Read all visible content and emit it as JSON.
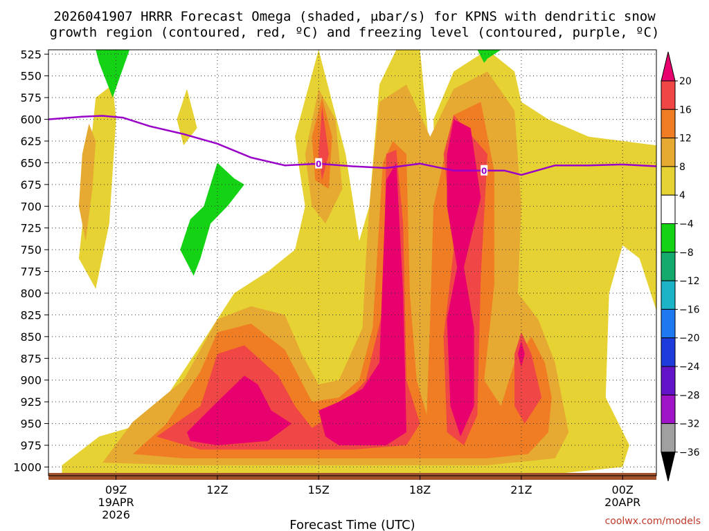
{
  "chart_data": {
    "type": "heatmap",
    "title_line1": "2026041907 HRRR Forecast Omega (shaded, μbar/s) for KPNS with dendritic snow",
    "title_line2": "growth region (contoured, red, ºC) and freezing level (contoured, purple, ºC)",
    "xlabel": "Forecast Time (UTC)",
    "credit": "coolwx.com/models",
    "x_range_hours": [
      7.0,
      25.0
    ],
    "y_range_mb": [
      520,
      1010
    ],
    "y_ticks": [
      "525",
      "550",
      "575",
      "600",
      "625",
      "650",
      "675",
      "700",
      "725",
      "750",
      "775",
      "800",
      "825",
      "850",
      "875",
      "900",
      "925",
      "950",
      "975",
      "1000"
    ],
    "x_ticks": [
      {
        "hour": 9,
        "label": "09Z",
        "sub1": "19APR",
        "sub2": "2026"
      },
      {
        "hour": 12,
        "label": "12Z",
        "sub1": "",
        "sub2": ""
      },
      {
        "hour": 15,
        "label": "15Z",
        "sub1": "",
        "sub2": ""
      },
      {
        "hour": 18,
        "label": "18Z",
        "sub1": "",
        "sub2": ""
      },
      {
        "hour": 21,
        "label": "21Z",
        "sub1": "",
        "sub2": ""
      },
      {
        "hour": 24,
        "label": "00Z",
        "sub1": "20APR",
        "sub2": ""
      }
    ],
    "colorbar": {
      "labels": [
        "20",
        "16",
        "12",
        "8",
        "4",
        "−4",
        "−8",
        "−12",
        "−16",
        "−20",
        "−24",
        "−28",
        "−32",
        "−36"
      ],
      "colors": [
        "#e8006e",
        "#f04646",
        "#f07d23",
        "#e6aa32",
        "#e6d232",
        "#ffffff",
        "#14d214",
        "#14aa6e",
        "#1eb4c8",
        "#1e78f0",
        "#1e3cdc",
        "#6414c8",
        "#a014c8",
        "#a0a0a0",
        "#000000"
      ]
    },
    "freezing_level": {
      "label": "0",
      "label_hours": [
        15.0,
        19.9
      ],
      "points": [
        [
          7.0,
          600
        ],
        [
          8.0,
          597
        ],
        [
          8.6,
          596
        ],
        [
          9.2,
          598
        ],
        [
          10.0,
          608
        ],
        [
          11.0,
          617
        ],
        [
          12.0,
          628
        ],
        [
          13.0,
          644
        ],
        [
          14.0,
          653
        ],
        [
          15.0,
          651
        ],
        [
          16.0,
          654
        ],
        [
          17.0,
          656
        ],
        [
          18.0,
          651
        ],
        [
          19.0,
          659
        ],
        [
          19.9,
          659
        ],
        [
          20.5,
          659
        ],
        [
          21.0,
          664
        ],
        [
          22.0,
          653
        ],
        [
          23.0,
          653
        ],
        [
          24.0,
          652
        ],
        [
          25.0,
          654
        ]
      ]
    },
    "omega_regions": [
      {
        "level": 4,
        "points": [
          [
            7.4,
            998
          ],
          [
            8.5,
            965
          ],
          [
            10.0,
            948
          ],
          [
            11.5,
            860
          ],
          [
            12.5,
            800
          ],
          [
            13.5,
            775
          ],
          [
            14.3,
            750
          ],
          [
            14.6,
            700
          ],
          [
            14.4,
            650
          ],
          [
            14.3,
            620
          ],
          [
            15.0,
            520
          ],
          [
            15.8,
            640
          ],
          [
            16.2,
            740
          ],
          [
            16.5,
            700
          ],
          [
            16.8,
            560
          ],
          [
            17.3,
            520
          ],
          [
            18.0,
            520
          ],
          [
            18.2,
            600
          ],
          [
            18.4,
            700
          ],
          [
            18.5,
            760
          ],
          [
            18.4,
            600
          ],
          [
            19.0,
            545
          ],
          [
            20.0,
            520
          ],
          [
            20.8,
            545
          ],
          [
            21.0,
            580
          ],
          [
            21.8,
            600
          ],
          [
            23.0,
            620
          ],
          [
            24.0,
            625
          ],
          [
            25.0,
            630
          ],
          [
            25.0,
            820
          ],
          [
            24.5,
            760
          ],
          [
            24.0,
            745
          ],
          [
            23.6,
            800
          ],
          [
            23.5,
            920
          ],
          [
            24.2,
            975
          ],
          [
            24.0,
            1000
          ],
          [
            22.0,
            1008
          ],
          [
            20.0,
            1008
          ],
          [
            18.0,
            1008
          ],
          [
            16.0,
            1008
          ],
          [
            14.0,
            1008
          ],
          [
            11.0,
            1008
          ],
          [
            9.0,
            1008
          ],
          [
            7.4,
            1008
          ]
        ]
      },
      {
        "level": 4,
        "points": [
          [
            7.9,
            760
          ],
          [
            8.4,
            575
          ],
          [
            8.9,
            560
          ],
          [
            9.0,
            600
          ],
          [
            8.8,
            720
          ],
          [
            8.4,
            795
          ]
        ]
      },
      {
        "level": 4,
        "points": [
          [
            10.8,
            600
          ],
          [
            11.1,
            565
          ],
          [
            11.4,
            610
          ],
          [
            11.0,
            630
          ]
        ]
      },
      {
        "level": 8,
        "points": [
          [
            8.0,
            640
          ],
          [
            8.2,
            605
          ],
          [
            8.4,
            625
          ],
          [
            8.3,
            680
          ],
          [
            8.1,
            740
          ],
          [
            7.9,
            700
          ]
        ]
      },
      {
        "level": 8,
        "points": [
          [
            8.6,
            995
          ],
          [
            9.5,
            948
          ],
          [
            11.0,
            900
          ],
          [
            12.0,
            830
          ],
          [
            13.0,
            815
          ],
          [
            14.0,
            825
          ],
          [
            14.5,
            870
          ],
          [
            15.0,
            905
          ],
          [
            15.6,
            900
          ],
          [
            16.3,
            840
          ],
          [
            16.4,
            760
          ],
          [
            16.5,
            700
          ],
          [
            16.8,
            580
          ],
          [
            17.6,
            560
          ],
          [
            18.3,
            620
          ],
          [
            19.0,
            565
          ],
          [
            20.0,
            545
          ],
          [
            20.8,
            590
          ],
          [
            21.0,
            700
          ],
          [
            20.9,
            800
          ],
          [
            21.5,
            830
          ],
          [
            22.0,
            880
          ],
          [
            22.2,
            920
          ],
          [
            22.4,
            960
          ],
          [
            22.0,
            990
          ],
          [
            20.0,
            998
          ],
          [
            18.0,
            998
          ],
          [
            16.0,
            998
          ],
          [
            14.0,
            998
          ],
          [
            11.0,
            998
          ]
        ]
      },
      {
        "level": 8,
        "points": [
          [
            14.6,
            640
          ],
          [
            15.0,
            565
          ],
          [
            15.5,
            600
          ],
          [
            15.7,
            680
          ],
          [
            15.2,
            720
          ],
          [
            14.8,
            700
          ]
        ]
      },
      {
        "level": 12,
        "points": [
          [
            9.5,
            985
          ],
          [
            10.5,
            950
          ],
          [
            11.5,
            890
          ],
          [
            12.0,
            845
          ],
          [
            13.0,
            835
          ],
          [
            14.0,
            865
          ],
          [
            14.8,
            925
          ],
          [
            15.6,
            920
          ],
          [
            16.2,
            900
          ],
          [
            16.6,
            840
          ],
          [
            16.9,
            650
          ],
          [
            17.2,
            625
          ],
          [
            17.6,
            640
          ],
          [
            17.7,
            800
          ],
          [
            17.9,
            900
          ],
          [
            18.2,
            940
          ],
          [
            18.3,
            830
          ],
          [
            18.4,
            700
          ],
          [
            19.0,
            595
          ],
          [
            19.8,
            580
          ],
          [
            20.2,
            660
          ],
          [
            20.2,
            790
          ],
          [
            19.9,
            900
          ],
          [
            20.4,
            930
          ],
          [
            20.8,
            880
          ],
          [
            21.3,
            850
          ],
          [
            21.7,
            880
          ],
          [
            21.9,
            920
          ],
          [
            21.8,
            960
          ],
          [
            21.2,
            985
          ],
          [
            20.0,
            990
          ],
          [
            18.0,
            990
          ],
          [
            16.0,
            990
          ],
          [
            14.0,
            990
          ],
          [
            11.0,
            990
          ]
        ]
      },
      {
        "level": 12,
        "points": [
          [
            14.8,
            620
          ],
          [
            15.1,
            575
          ],
          [
            15.4,
            620
          ],
          [
            15.3,
            680
          ],
          [
            14.9,
            670
          ]
        ]
      },
      {
        "level": 16,
        "points": [
          [
            10.2,
            965
          ],
          [
            11.5,
            930
          ],
          [
            12.0,
            870
          ],
          [
            12.8,
            860
          ],
          [
            13.8,
            895
          ],
          [
            14.3,
            930
          ],
          [
            14.8,
            955
          ],
          [
            15.6,
            935
          ],
          [
            16.4,
            900
          ],
          [
            16.9,
            820
          ],
          [
            17.0,
            640
          ],
          [
            17.3,
            635
          ],
          [
            17.5,
            720
          ],
          [
            17.6,
            900
          ],
          [
            18.0,
            950
          ],
          [
            17.6,
            975
          ],
          [
            16.0,
            980
          ],
          [
            14.5,
            980
          ],
          [
            11.5,
            980
          ]
        ]
      },
      {
        "level": 16,
        "points": [
          [
            18.7,
            640
          ],
          [
            19.0,
            595
          ],
          [
            20.0,
            640
          ],
          [
            19.8,
            780
          ],
          [
            19.7,
            940
          ],
          [
            19.3,
            975
          ],
          [
            18.8,
            960
          ],
          [
            18.7,
            850
          ],
          [
            19.0,
            750
          ]
        ]
      },
      {
        "level": 16,
        "points": [
          [
            20.8,
            870
          ],
          [
            21.0,
            845
          ],
          [
            21.3,
            870
          ],
          [
            21.6,
            920
          ],
          [
            21.1,
            950
          ],
          [
            20.8,
            930
          ]
        ]
      },
      {
        "level": 16,
        "points": [
          [
            15.0,
            640
          ],
          [
            15.1,
            585
          ],
          [
            15.3,
            640
          ],
          [
            15.1,
            670
          ]
        ]
      },
      {
        "level": 20,
        "points": [
          [
            11.1,
            960
          ],
          [
            12.0,
            925
          ],
          [
            12.8,
            895
          ],
          [
            13.2,
            905
          ],
          [
            13.6,
            935
          ],
          [
            14.2,
            950
          ],
          [
            13.5,
            970
          ],
          [
            12.0,
            975
          ],
          [
            11.2,
            970
          ]
        ]
      },
      {
        "level": 20,
        "points": [
          [
            15.0,
            935
          ],
          [
            15.6,
            925
          ],
          [
            16.3,
            910
          ],
          [
            16.8,
            880
          ],
          [
            17.0,
            670
          ],
          [
            17.3,
            650
          ],
          [
            17.5,
            800
          ],
          [
            17.6,
            960
          ],
          [
            17.0,
            975
          ],
          [
            15.6,
            975
          ],
          [
            15.2,
            965
          ]
        ]
      },
      {
        "level": 20,
        "points": [
          [
            18.8,
            640
          ],
          [
            19.0,
            600
          ],
          [
            19.5,
            610
          ],
          [
            19.8,
            690
          ],
          [
            19.3,
            770
          ],
          [
            19.6,
            840
          ],
          [
            19.6,
            930
          ],
          [
            19.2,
            965
          ],
          [
            18.9,
            930
          ],
          [
            18.8,
            830
          ],
          [
            19.1,
            770
          ],
          [
            18.8,
            700
          ]
        ]
      },
      {
        "level": 20,
        "points": [
          [
            20.9,
            870
          ],
          [
            21.0,
            855
          ],
          [
            21.1,
            870
          ],
          [
            21.0,
            885
          ]
        ]
      },
      {
        "level": -4,
        "points": [
          [
            8.4,
            520
          ],
          [
            9.0,
            520
          ],
          [
            9.4,
            520
          ],
          [
            8.9,
            575
          ],
          [
            8.5,
            535
          ]
        ]
      },
      {
        "level": -4,
        "points": [
          [
            12.0,
            650
          ],
          [
            12.5,
            668
          ],
          [
            12.8,
            675
          ],
          [
            12.3,
            700
          ],
          [
            11.8,
            720
          ],
          [
            11.5,
            760
          ],
          [
            11.3,
            780
          ],
          [
            10.9,
            750
          ],
          [
            11.2,
            715
          ],
          [
            11.6,
            700
          ],
          [
            11.8,
            675
          ]
        ]
      },
      {
        "level": -4,
        "points": [
          [
            19.7,
            520
          ],
          [
            20.4,
            520
          ],
          [
            20.0,
            530
          ],
          [
            19.9,
            535
          ]
        ]
      }
    ]
  }
}
